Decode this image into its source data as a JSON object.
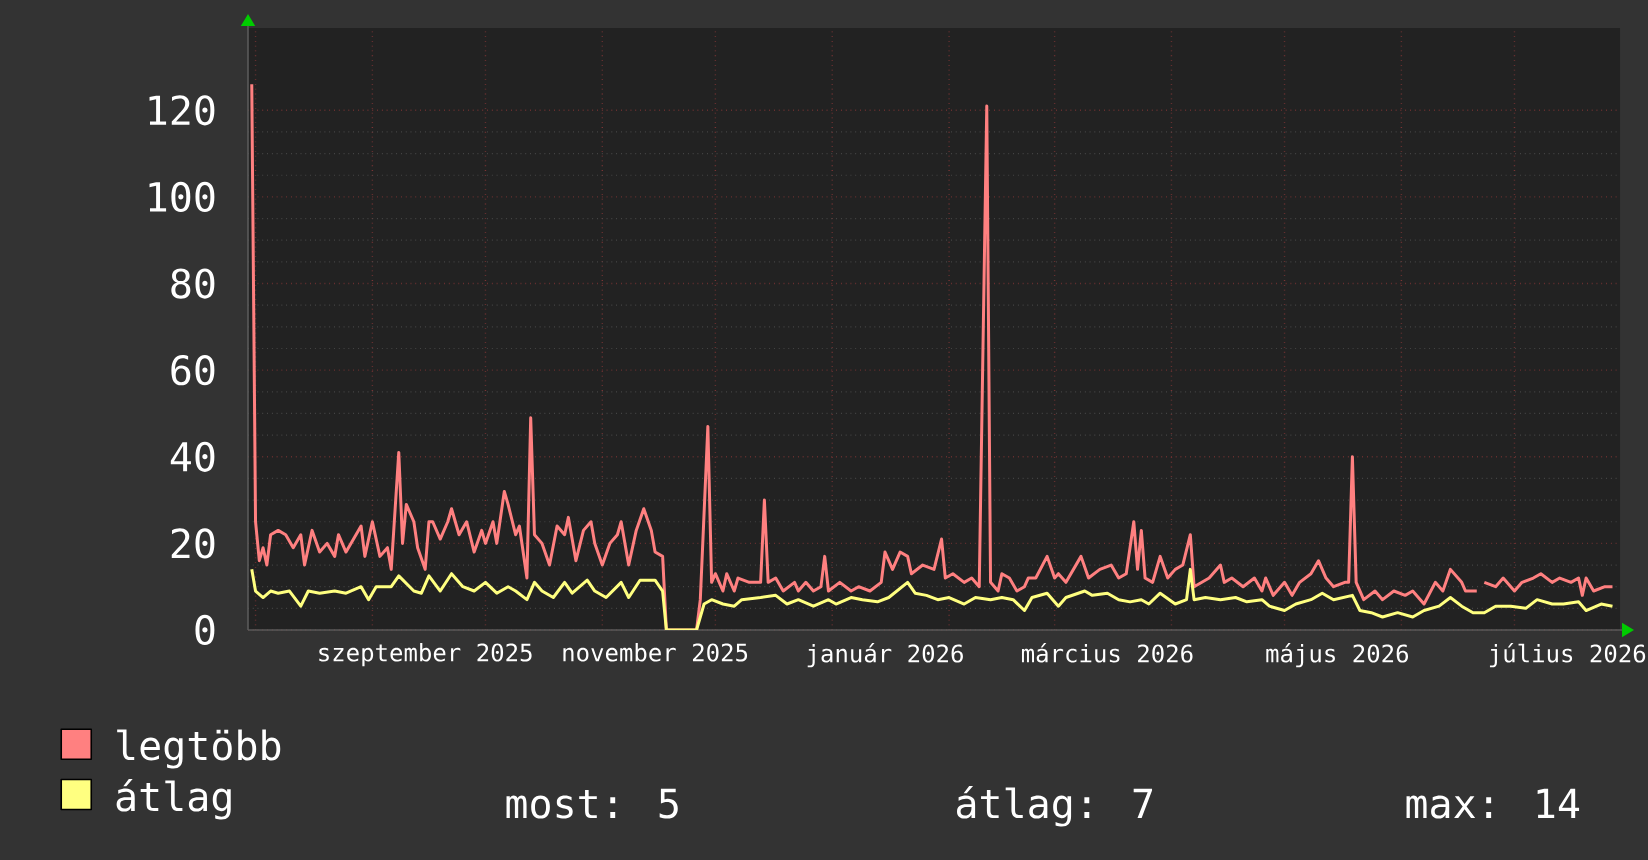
{
  "chart_data": {
    "type": "line",
    "series": [
      {
        "name": "legtöbb",
        "color": "#ff8080",
        "x": [
          "2025-07-31",
          "2025-08-01",
          "2025-08-02",
          "2025-08-03",
          "2025-08-04",
          "2025-08-05",
          "2025-08-07",
          "2025-08-09",
          "2025-08-11",
          "2025-08-13",
          "2025-08-14",
          "2025-08-16",
          "2025-08-18",
          "2025-08-20",
          "2025-08-22",
          "2025-08-23",
          "2025-08-25",
          "2025-08-27",
          "2025-08-29",
          "2025-08-30",
          "2025-09-01",
          "2025-09-03",
          "2025-09-05",
          "2025-09-06",
          "2025-09-08",
          "2025-09-09",
          "2025-09-10",
          "2025-09-12",
          "2025-09-13",
          "2025-09-15",
          "2025-09-16",
          "2025-09-17",
          "2025-09-19",
          "2025-09-21",
          "2025-09-22",
          "2025-09-24",
          "2025-09-26",
          "2025-09-28",
          "2025-09-30",
          "2025-10-01",
          "2025-10-03",
          "2025-10-04",
          "2025-10-06",
          "2025-10-07",
          "2025-10-09",
          "2025-10-10",
          "2025-10-12",
          "2025-10-13",
          "2025-10-14",
          "2025-10-16",
          "2025-10-18",
          "2025-10-20",
          "2025-10-22",
          "2025-10-23",
          "2025-10-25",
          "2025-10-27",
          "2025-10-29",
          "2025-10-30",
          "2025-11-01",
          "2025-11-03",
          "2025-11-05",
          "2025-11-06",
          "2025-11-08",
          "2025-11-10",
          "2025-11-12",
          "2025-11-14",
          "2025-11-15",
          "2025-11-17",
          "2025-11-18",
          "2025-11-26",
          "2025-11-27",
          "2025-11-29",
          "2025-11-30",
          "2025-12-01",
          "2025-12-03",
          "2025-12-04",
          "2025-12-06",
          "2025-12-07",
          "2025-12-10",
          "2025-12-13",
          "2025-12-14",
          "2025-12-15",
          "2025-12-17",
          "2025-12-19",
          "2025-12-22",
          "2025-12-23",
          "2025-12-25",
          "2025-12-27",
          "2025-12-29",
          "2025-12-30",
          "2025-12-31",
          "2026-01-03",
          "2026-01-06",
          "2026-01-08",
          "2026-01-11",
          "2026-01-14",
          "2026-01-15",
          "2026-01-17",
          "2026-01-19",
          "2026-01-21",
          "2026-01-22",
          "2026-01-25",
          "2026-01-28",
          "2026-01-30",
          "2026-01-31",
          "2026-02-02",
          "2026-02-05",
          "2026-02-07",
          "2026-02-09",
          "2026-02-11",
          "2026-02-12",
          "2026-02-14",
          "2026-02-15",
          "2026-02-17",
          "2026-02-19",
          "2026-02-21",
          "2026-02-22",
          "2026-02-24",
          "2026-02-27",
          "2026-03-01",
          "2026-03-02",
          "2026-03-04",
          "2026-03-06",
          "2026-03-08",
          "2026-03-10",
          "2026-03-13",
          "2026-03-16",
          "2026-03-18",
          "2026-03-20",
          "2026-03-22",
          "2026-03-23",
          "2026-03-24",
          "2026-03-25",
          "2026-03-27",
          "2026-03-29",
          "2026-03-31",
          "2026-04-02",
          "2026-04-04",
          "2026-04-06",
          "2026-04-07",
          "2026-04-09",
          "2026-04-11",
          "2026-04-14",
          "2026-04-15",
          "2026-04-17",
          "2026-04-20",
          "2026-04-23",
          "2026-04-25",
          "2026-04-26",
          "2026-04-28",
          "2026-05-01",
          "2026-05-03",
          "2026-05-05",
          "2026-05-08",
          "2026-05-10",
          "2026-05-12",
          "2026-05-14",
          "2026-05-17",
          "2026-05-18",
          "2026-05-19",
          "2026-05-20",
          "2026-05-22",
          "2026-05-25",
          "2026-05-27",
          "2026-05-30",
          "2026-06-02",
          "2026-06-04",
          "2026-06-07",
          "2026-06-10",
          "2026-06-12",
          "2026-06-14",
          "2026-06-17",
          "2026-06-18",
          "2026-06-21",
          "2026-06-22",
          "2026-06-23",
          "2026-06-26",
          "2026-06-28",
          "2026-07-01",
          "2026-07-03",
          "2026-07-06",
          "2026-07-08",
          "2026-07-11",
          "2026-07-13",
          "2026-07-16",
          "2026-07-18",
          "2026-07-19",
          "2026-07-20",
          "2026-07-22",
          "2026-07-25",
          "2026-07-27"
        ],
        "values": [
          126,
          25,
          16,
          19,
          15,
          22,
          23,
          22,
          19,
          22,
          15,
          23,
          18,
          20,
          17,
          22,
          18,
          21,
          24,
          17,
          25,
          17,
          19,
          14,
          41,
          20,
          29,
          25,
          19,
          14,
          25,
          25,
          21,
          25,
          28,
          22,
          25,
          18,
          23,
          20,
          25,
          20,
          32,
          29,
          22,
          24,
          12,
          49,
          22,
          20,
          15,
          24,
          22,
          26,
          16,
          23,
          25,
          20,
          15,
          20,
          22,
          25,
          15,
          23,
          28,
          23,
          18,
          17,
          0,
          0,
          7,
          47,
          11,
          13,
          9,
          13,
          9,
          12,
          11,
          11,
          30,
          11,
          12,
          9,
          11,
          9,
          11,
          9,
          10,
          17,
          9,
          11,
          9,
          10,
          9,
          11,
          18,
          14,
          18,
          17,
          13,
          15,
          14,
          21,
          12,
          13,
          11,
          12,
          10,
          121,
          11,
          9,
          13,
          12,
          9,
          10,
          12,
          12,
          17,
          12,
          13,
          11,
          14,
          17,
          12,
          14,
          15,
          12,
          13,
          25,
          14,
          23,
          12,
          11,
          17,
          12,
          14,
          15,
          22,
          10,
          11,
          12,
          15,
          11,
          12,
          10,
          12,
          9,
          12,
          8,
          11,
          8,
          11,
          13,
          16,
          12,
          10,
          11,
          11,
          40,
          11,
          7,
          9,
          7,
          9,
          8,
          9,
          6,
          11,
          9,
          14,
          11,
          9,
          9,
          null,
          11,
          10,
          12,
          9,
          11,
          12,
          13,
          11,
          12,
          11,
          12,
          8,
          12,
          9,
          10,
          10
        ]
      },
      {
        "name": "átlag",
        "color": "#ffff80",
        "x": [
          "2025-07-31",
          "2025-08-01",
          "2025-08-03",
          "2025-08-05",
          "2025-08-07",
          "2025-08-10",
          "2025-08-13",
          "2025-08-15",
          "2025-08-18",
          "2025-08-22",
          "2025-08-25",
          "2025-08-29",
          "2025-08-31",
          "2025-09-02",
          "2025-09-06",
          "2025-09-08",
          "2025-09-12",
          "2025-09-14",
          "2025-09-16",
          "2025-09-19",
          "2025-09-22",
          "2025-09-25",
          "2025-09-28",
          "2025-10-01",
          "2025-10-04",
          "2025-10-07",
          "2025-10-09",
          "2025-10-12",
          "2025-10-14",
          "2025-10-16",
          "2025-10-19",
          "2025-10-22",
          "2025-10-24",
          "2025-10-28",
          "2025-10-30",
          "2025-11-02",
          "2025-11-06",
          "2025-11-08",
          "2025-11-11",
          "2025-11-15",
          "2025-11-17",
          "2025-11-18",
          "2025-11-26",
          "2025-11-28",
          "2025-11-30",
          "2025-12-03",
          "2025-12-06",
          "2025-12-08",
          "2025-12-13",
          "2025-12-17",
          "2025-12-20",
          "2025-12-23",
          "2025-12-27",
          "2025-12-31",
          "2026-01-02",
          "2026-01-06",
          "2026-01-09",
          "2026-01-13",
          "2026-01-16",
          "2026-01-21",
          "2026-01-23",
          "2026-01-26",
          "2026-01-29",
          "2026-02-01",
          "2026-02-05",
          "2026-02-08",
          "2026-02-12",
          "2026-02-15",
          "2026-02-18",
          "2026-02-21",
          "2026-02-23",
          "2026-02-27",
          "2026-03-02",
          "2026-03-04",
          "2026-03-09",
          "2026-03-11",
          "2026-03-15",
          "2026-03-18",
          "2026-03-21",
          "2026-03-24",
          "2026-03-26",
          "2026-03-29",
          "2026-04-02",
          "2026-04-05",
          "2026-04-06",
          "2026-04-07",
          "2026-04-10",
          "2026-04-14",
          "2026-04-18",
          "2026-04-21",
          "2026-04-25",
          "2026-04-27",
          "2026-05-01",
          "2026-05-04",
          "2026-05-08",
          "2026-05-11",
          "2026-05-14",
          "2026-05-19",
          "2026-05-21",
          "2026-05-24",
          "2026-05-27",
          "2026-05-31",
          "2026-06-04",
          "2026-06-07",
          "2026-06-11",
          "2026-06-14",
          "2026-06-17",
          "2026-06-20",
          "2026-06-23",
          "2026-06-26",
          "2026-06-30",
          "2026-07-04",
          "2026-07-07",
          "2026-07-11",
          "2026-07-14",
          "2026-07-18",
          "2026-07-20",
          "2026-07-24",
          "2026-07-27"
        ],
        "values": [
          14,
          9,
          7.5,
          9,
          8.5,
          9,
          5.5,
          9,
          8.5,
          9,
          8.5,
          10,
          7,
          10,
          10,
          12.5,
          9,
          8.5,
          12.5,
          9,
          13,
          10,
          9,
          11,
          8.5,
          10,
          9,
          7,
          11,
          9,
          7.5,
          11,
          8.5,
          11.5,
          9,
          7.5,
          11,
          7.5,
          11.5,
          11.5,
          9,
          0,
          0,
          6,
          7,
          6,
          5.5,
          7,
          7.5,
          8,
          6,
          7,
          5.5,
          7,
          6,
          7.5,
          7,
          6.5,
          7.5,
          11,
          8.5,
          8,
          7,
          7.5,
          6,
          7.5,
          7,
          7.5,
          7,
          4.5,
          7.5,
          8.5,
          5.5,
          7.5,
          9,
          8,
          8.5,
          7,
          6.5,
          7,
          6,
          8.5,
          6,
          7,
          14,
          7,
          7.5,
          7,
          7.5,
          6.5,
          7,
          5.5,
          4.5,
          6,
          7,
          8.5,
          7,
          8,
          4.5,
          4,
          3,
          4,
          3,
          4.5,
          5.5,
          7.5,
          5.5,
          4,
          4,
          5.5,
          5.5,
          5,
          7,
          6,
          6,
          6.5,
          4.5,
          6,
          5.5
        ]
      }
    ],
    "xlim": [
      "2025-07-30",
      "2026-07-29"
    ],
    "xticks": [
      {
        "value": "2025-08-01",
        "label": null
      },
      {
        "value": "2025-09-01",
        "label": null
      },
      {
        "value": "2025-09-15",
        "label": "szeptember 2025"
      },
      {
        "value": "2025-10-01",
        "label": null
      },
      {
        "value": "2025-11-01",
        "label": null
      },
      {
        "value": "2025-11-15",
        "label": "november 2025"
      },
      {
        "value": "2025-12-01",
        "label": null
      },
      {
        "value": "2026-01-01",
        "label": null
      },
      {
        "value": "2026-01-15",
        "label": "január 2026"
      },
      {
        "value": "2026-02-01",
        "label": null
      },
      {
        "value": "2026-03-01",
        "label": null
      },
      {
        "value": "2026-03-15",
        "label": "március 2026"
      },
      {
        "value": "2026-04-01",
        "label": null
      },
      {
        "value": "2026-05-01",
        "label": null
      },
      {
        "value": "2026-05-15",
        "label": "május 2026"
      },
      {
        "value": "2026-06-01",
        "label": null
      },
      {
        "value": "2026-07-01",
        "label": null
      },
      {
        "value": "2026-07-15",
        "label": "július 2026"
      }
    ],
    "ylim": [
      0,
      139
    ],
    "yticks": [
      0,
      20,
      40,
      60,
      80,
      100,
      120
    ],
    "grid": true,
    "legend": "bottom",
    "annotations": [
      "most: 5",
      "átlag: 7",
      "max: 14"
    ]
  }
}
